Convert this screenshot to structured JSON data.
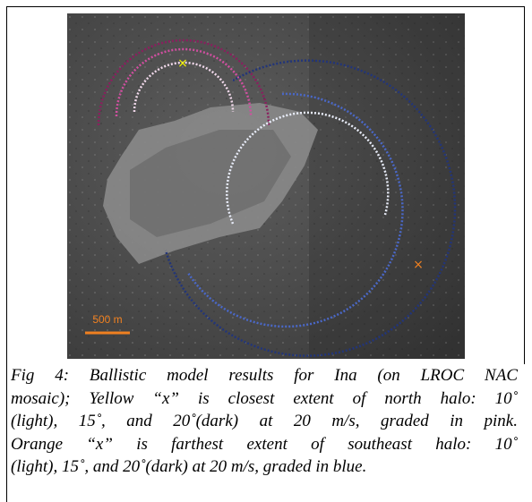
{
  "figure": {
    "scale_label": "500 m",
    "caption_lines": [
      "Fig 4: Ballistic model results for Ina (on LROC NAC",
      "mosaic); Yellow “x” is closest extent of north halo: 10˚",
      "(light), 15˚, and 20˚(dark) at 20 m/s, graded in pink.",
      "Orange “x” is farthest extent of southeast halo: 10˚",
      "(light), 15˚, and 20˚(dark) at 20 m/s, graded in blue."
    ]
  }
}
